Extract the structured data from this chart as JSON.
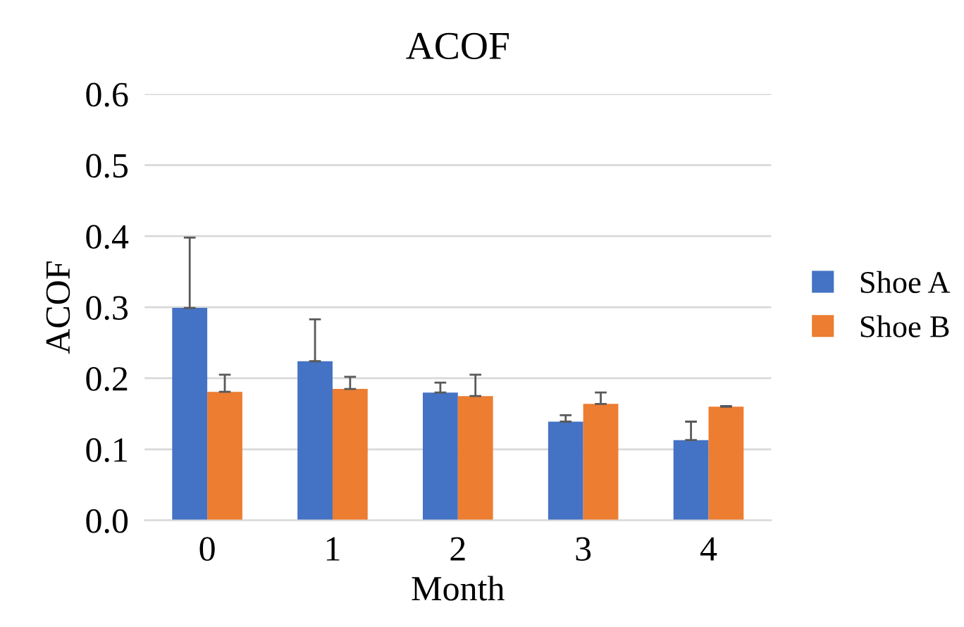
{
  "chart_data": {
    "type": "bar",
    "title": "ACOF",
    "xlabel": "Month",
    "ylabel": "ACOF",
    "categories": [
      "0",
      "1",
      "2",
      "3",
      "4"
    ],
    "series": [
      {
        "name": "Shoe A",
        "color": "#4472c4",
        "values": [
          0.299,
          0.224,
          0.18,
          0.139,
          0.113
        ],
        "errors": [
          [
            0.299,
            0.398
          ],
          [
            0.224,
            0.283
          ],
          [
            0.18,
            0.194
          ],
          [
            0.139,
            0.148
          ],
          [
            0.113,
            0.139
          ]
        ]
      },
      {
        "name": "Shoe B",
        "color": "#ed7d31",
        "values": [
          0.181,
          0.185,
          0.175,
          0.164,
          0.16
        ],
        "errors": [
          [
            0.181,
            0.205
          ],
          [
            0.185,
            0.202
          ],
          [
            0.175,
            0.205
          ],
          [
            0.164,
            0.18
          ],
          [
            0.16,
            0.161
          ]
        ]
      }
    ],
    "ylim": [
      0,
      0.6
    ],
    "yticks": [
      {
        "value": 0,
        "label": "0.0"
      },
      0.1,
      0.2,
      0.3,
      0.4,
      0.5,
      0.6
    ],
    "grid": "y",
    "legend": "right"
  }
}
